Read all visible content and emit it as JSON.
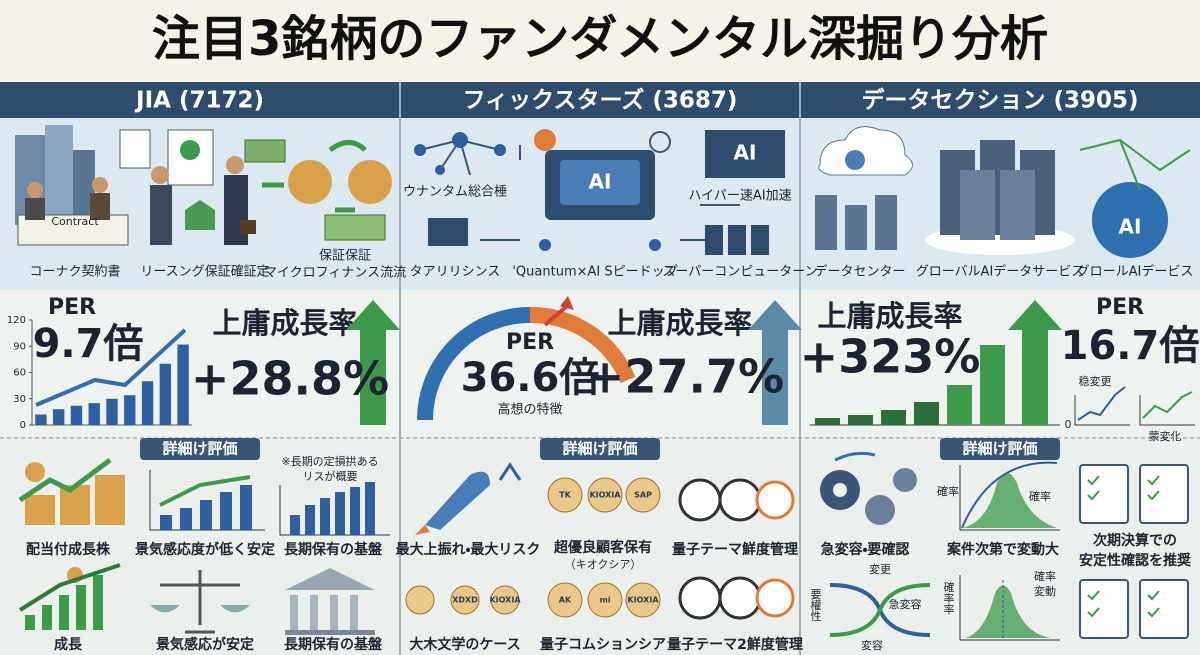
{
  "title": "注目3銘柄のファンダメンタル深掘り分析",
  "columns": [
    {
      "header": "JIA (7172)",
      "icon_labels": [
        "コーナク契約書",
        "リースング保証確証定",
        "保証保証",
        "マイクロフィナンス流流"
      ],
      "icon_texts": [
        "Contract"
      ],
      "per": {
        "label": "PER",
        "value": "9.7倍"
      },
      "growth": {
        "label": "上庸成長率",
        "value": "+28.8%"
      },
      "chart_data": {
        "type": "bar",
        "ylim": [
          0,
          120
        ],
        "yticks": [
          0,
          30,
          60,
          90,
          120
        ],
        "values": [
          12,
          18,
          22,
          25,
          30,
          34,
          50,
          70,
          92
        ],
        "color": "#2f5f9e"
      },
      "section_label": "詳細け評価",
      "notes": [
        "※長期の定損拱ある",
        "リスが概要"
      ],
      "evaluations": [
        "配当付成長株",
        "景気感応度が低く安定",
        "長期保有の基盤",
        "成長",
        "景気感応が安定",
        "長期保有の基盤"
      ]
    },
    {
      "header": "フィックスターズ (3687)",
      "icon_labels": [
        "ウナンタム総合棰",
        "ハイパー速AI加速",
        "タアリリシンス",
        "'Quantum×AI Sピードップ",
        "スーパーコンピューターン"
      ],
      "icon_texts": [
        "AI",
        "AI"
      ],
      "per": {
        "label": "PER",
        "value": "36.6倍",
        "caption": "高想の特徴"
      },
      "growth": {
        "label": "上庸成長率",
        "value": "+27.7%"
      },
      "section_label": "詳細け評価",
      "badges": [
        "TK",
        "KIOXIA",
        "SAP",
        "XDXD",
        "KIOXIA",
        "AK",
        "mi",
        "KIOXIA"
      ],
      "evaluations": [
        "最大上振れ・最大リスク",
        "超優良顧客保有",
        "量子テーマ鮮度管理",
        "大木文学のケース",
        "量子コムションシア",
        "量子テーマ2鮮度管理"
      ],
      "evaluation_notes": [
        "（キオクシア）"
      ]
    },
    {
      "header": "データセクション (3905)",
      "icon_labels": [
        "データセンター",
        "グローバルAIデータサービス",
        "グロールAIデービス"
      ],
      "icon_texts": [
        "AI"
      ],
      "per": {
        "label": "PER",
        "value": "16.7倍"
      },
      "growth": {
        "label": "上庸成長率",
        "value": "+323%"
      },
      "chart_labels": [
        "稳変更",
        "蒙変化",
        "0"
      ],
      "section_label": "詳細け評価",
      "evaluations": [
        "急変容・要確認",
        "案件次第で変動大",
        "次期決算での",
        "安定性確認を推奨"
      ],
      "diagram_labels": [
        "確率",
        "確率",
        "変更",
        "急変容",
        "要權性",
        "変容",
        "確率率",
        "確率",
        "変動"
      ]
    }
  ]
}
